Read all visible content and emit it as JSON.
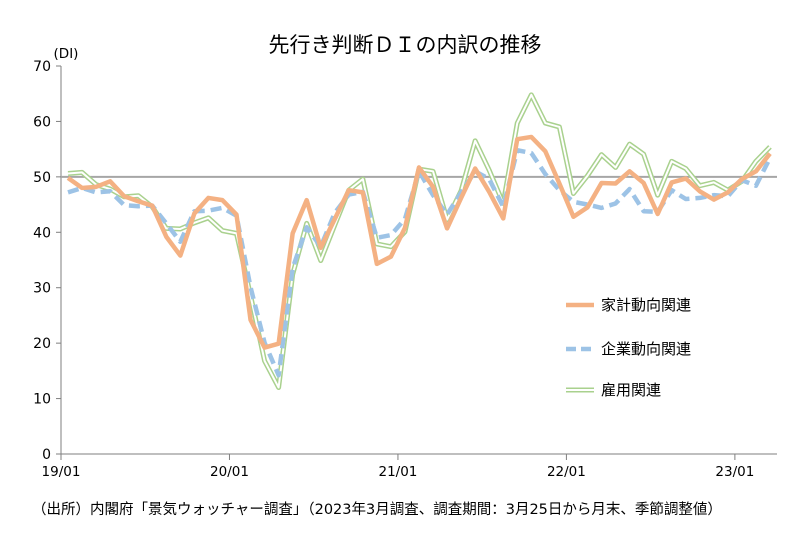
{
  "chart_data": {
    "type": "line",
    "title": "先行き判断ＤＩの内訳の推移",
    "ylabel": "(DI)",
    "xlabel": "",
    "ylim": [
      0,
      70
    ],
    "yticks": [
      0,
      10,
      20,
      30,
      40,
      50,
      60,
      70
    ],
    "xtick_labels": [
      "19/01",
      "20/01",
      "21/01",
      "22/01",
      "23/01"
    ],
    "reference_line": 50,
    "grid": false,
    "legend_position": "right",
    "x": [
      "19/01",
      "19/02",
      "19/03",
      "19/04",
      "19/05",
      "19/06",
      "19/07",
      "19/08",
      "19/09",
      "19/10",
      "19/11",
      "19/12",
      "20/01",
      "20/02",
      "20/03",
      "20/04",
      "20/05",
      "20/06",
      "20/07",
      "20/08",
      "20/09",
      "20/10",
      "20/11",
      "20/12",
      "21/01",
      "21/02",
      "21/03",
      "21/04",
      "21/05",
      "21/06",
      "21/07",
      "21/08",
      "21/09",
      "21/10",
      "21/11",
      "21/12",
      "22/01",
      "22/02",
      "22/03",
      "22/04",
      "22/05",
      "22/06",
      "22/07",
      "22/08",
      "22/09",
      "22/10",
      "22/11",
      "22/12",
      "23/01",
      "23/02",
      "23/03"
    ],
    "series": [
      {
        "name": "家計動向関連",
        "color": "#F4B183",
        "style": "solid-thick",
        "values": [
          49.8,
          48.0,
          48.2,
          49.2,
          46.5,
          45.6,
          44.8,
          39.2,
          35.8,
          43.4,
          46.2,
          45.8,
          43.2,
          24.2,
          19.2,
          19.9,
          39.8,
          45.8,
          37.2,
          42.4,
          47.6,
          47.2,
          34.3,
          35.6,
          40.8,
          51.7,
          48.2,
          40.7,
          46.2,
          51.5,
          47.3,
          42.5,
          56.8,
          57.2,
          54.6,
          48.8,
          42.8,
          44.5,
          48.9,
          48.8,
          51.0,
          48.9,
          43.3,
          49.0,
          49.7,
          47.4,
          45.9,
          47.2,
          49.6,
          51.0,
          54.2
        ]
      },
      {
        "name": "企業動向関連",
        "color": "#9DC3E6",
        "style": "dashed-thick",
        "values": [
          47.2,
          48.0,
          47.2,
          47.4,
          44.9,
          44.7,
          44.8,
          41.6,
          38.3,
          43.8,
          43.9,
          44.4,
          43.0,
          30.1,
          20.1,
          14.2,
          33.5,
          40.9,
          37.4,
          43.5,
          46.8,
          47.3,
          39.0,
          39.5,
          42.4,
          51.0,
          46.7,
          43.2,
          47.2,
          51.0,
          49.6,
          44.6,
          54.8,
          54.3,
          50.5,
          47.6,
          45.5,
          45.0,
          44.4,
          45.2,
          47.8,
          43.8,
          43.7,
          47.6,
          46.0,
          46.2,
          46.7,
          46.5,
          49.4,
          48.4,
          53.4
        ]
      },
      {
        "name": "雇用関連",
        "color": "#A9D18E",
        "style": "double-line",
        "values": [
          50.6,
          50.8,
          48.6,
          47.8,
          46.4,
          46.6,
          44.6,
          40.7,
          40.6,
          41.7,
          42.6,
          40.3,
          39.8,
          28.6,
          16.8,
          12.0,
          32.4,
          41.6,
          34.9,
          41.3,
          47.6,
          49.6,
          37.9,
          37.4,
          40.1,
          51.4,
          51.0,
          42.3,
          47.5,
          56.5,
          51.2,
          45.2,
          59.7,
          64.8,
          59.7,
          59.0,
          47.0,
          50.2,
          54.0,
          51.7,
          55.9,
          54.1,
          46.7,
          52.8,
          51.5,
          48.4,
          49.0,
          47.6,
          49.2,
          52.8,
          55.4
        ]
      }
    ]
  },
  "source_note": "（出所）内閣府「景気ウォッチャー調査」（2023年3月調査、調査期間：3月25日から月末、季節調整値）"
}
